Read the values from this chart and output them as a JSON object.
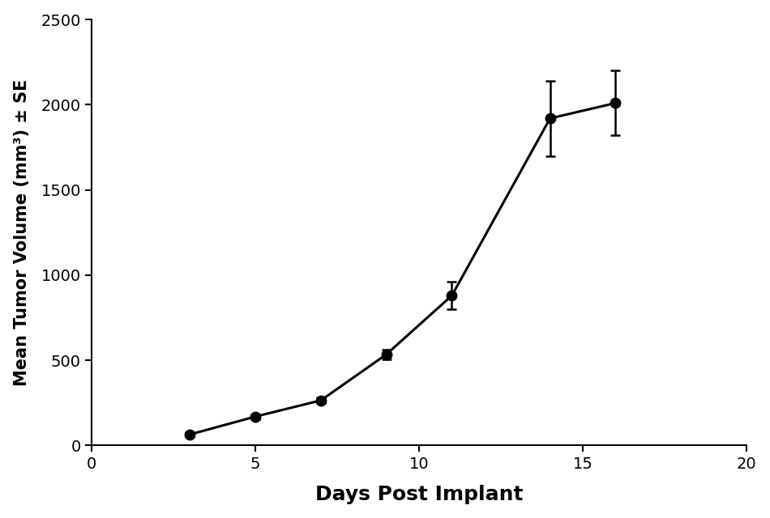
{
  "x": [
    3,
    5,
    7,
    9,
    11,
    14,
    16
  ],
  "y": [
    65,
    170,
    265,
    535,
    880,
    1920,
    2010
  ],
  "yerr": [
    12,
    15,
    18,
    30,
    80,
    220,
    190
  ],
  "xlabel": "Days Post Implant",
  "ylabel": "Mean Tumor Volume (mm³) ± SE",
  "xlim": [
    0,
    20
  ],
  "ylim": [
    0,
    2500
  ],
  "xticks": [
    0,
    5,
    10,
    15,
    20
  ],
  "yticks": [
    0,
    500,
    1000,
    1500,
    2000,
    2500
  ],
  "line_color": "#000000",
  "marker_size": 9,
  "linewidth": 2.2,
  "capsize": 4,
  "elinewidth": 1.8,
  "xlabel_fontsize": 18,
  "ylabel_fontsize": 15,
  "tick_fontsize": 14,
  "background_color": "#ffffff"
}
